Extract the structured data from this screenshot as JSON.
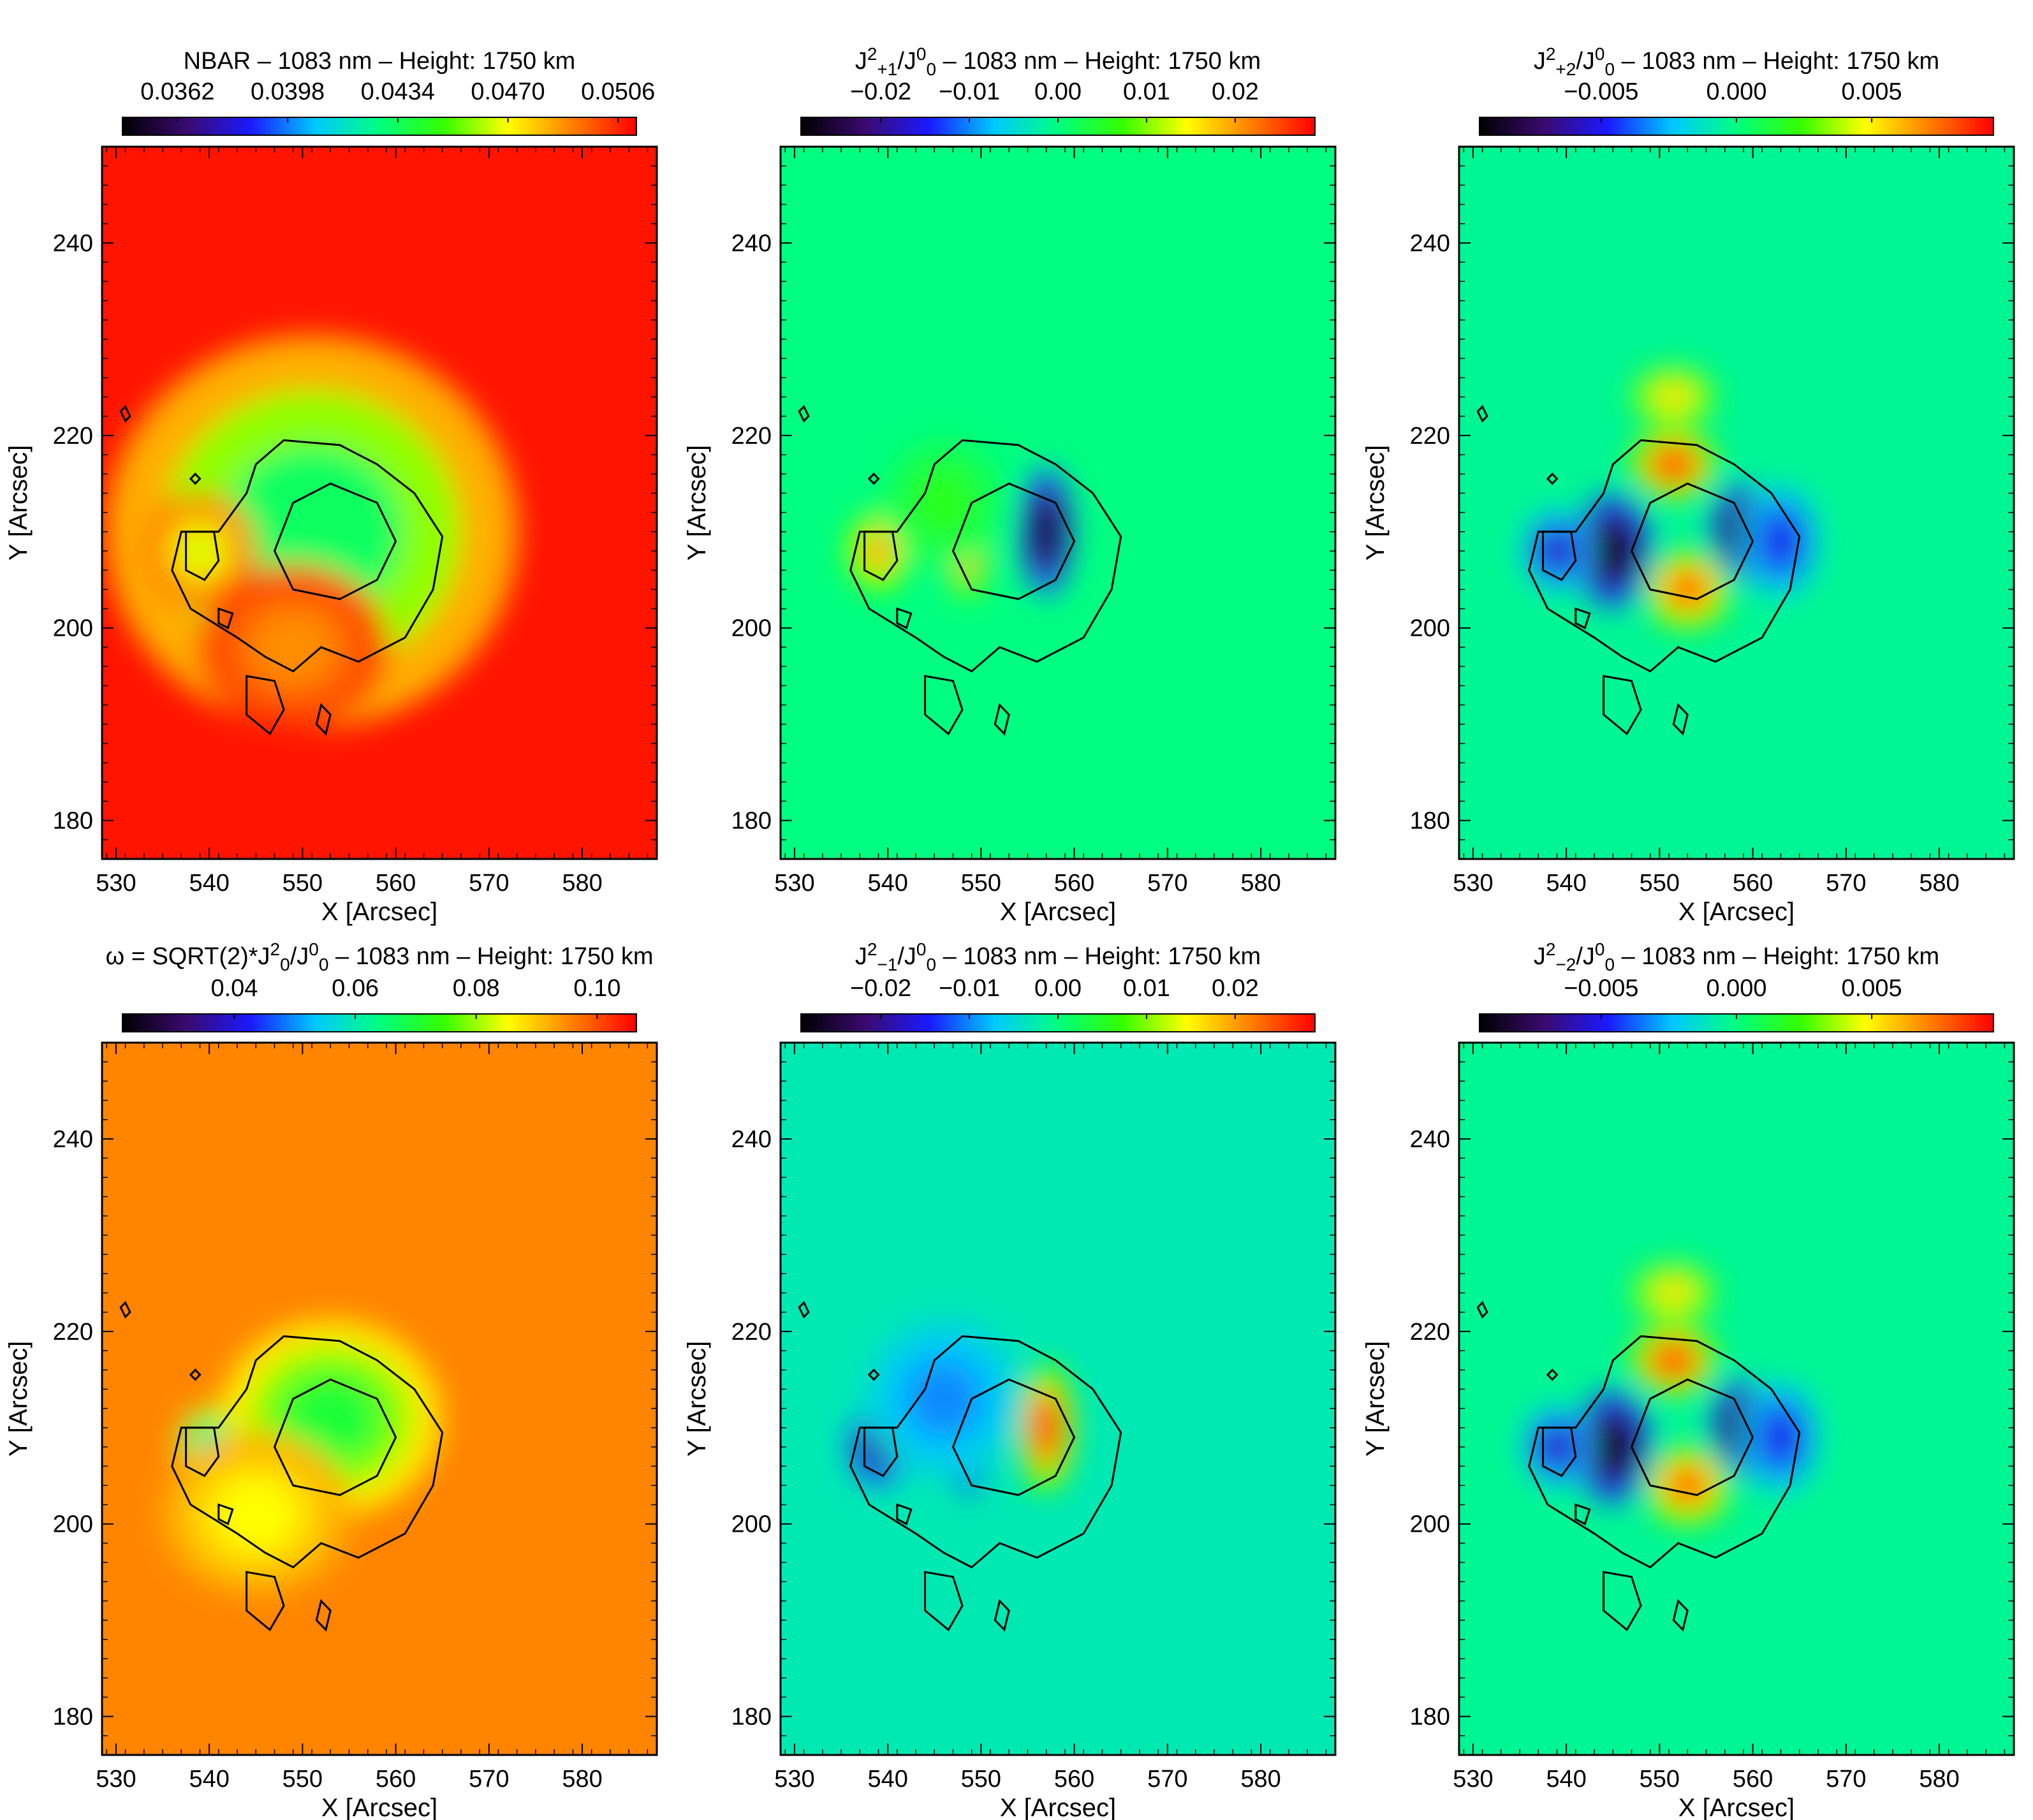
{
  "chart_data": [
    {
      "type": "heatmap",
      "title": "NBAR – 1083 nm – Height: 1750 km",
      "title_parts": [
        {
          "t": "NBAR – 1083 nm – Height: 1750 km"
        }
      ],
      "colorbar_ticks": [
        "0.0362",
        "0.0398",
        "0.0434",
        "0.0470",
        "0.0506"
      ],
      "colorbar_range": [
        0.0344,
        0.0512
      ],
      "colorbar_tick_values": [
        0.0362,
        0.0398,
        0.0434,
        0.047,
        0.0506
      ],
      "background_level": 0.98,
      "features": [
        {
          "x": 552,
          "y": 211,
          "sx": 6,
          "sy": 7,
          "amp": -1.2
        },
        {
          "x": 551,
          "y": 210,
          "sx": 13,
          "sy": 12,
          "amp": -0.45
        },
        {
          "x": 539,
          "y": 208,
          "sx": 3.5,
          "sy": 3.5,
          "amp": -0.25
        },
        {
          "x": 549,
          "y": 198,
          "sx": 6,
          "sy": 5,
          "amp": -0.12
        }
      ],
      "xlabel": "X [Arcsec]",
      "ylabel": "Y [Arcsec]",
      "xlim": [
        528.5,
        588
      ],
      "ylim": [
        176,
        250
      ],
      "xticks": [
        530,
        540,
        550,
        560,
        570,
        580
      ],
      "yticks": [
        180,
        200,
        220,
        240
      ]
    },
    {
      "type": "heatmap",
      "title": "J2+1/J00 – 1083 nm – Height: 1750 km",
      "title_parts": [
        {
          "t": "J"
        },
        {
          "t": "2",
          "s": "sup"
        },
        {
          "t": "+1",
          "s": "sub"
        },
        {
          "t": "/J"
        },
        {
          "t": "0",
          "s": "sup"
        },
        {
          "t": "0",
          "s": "sub"
        },
        {
          "t": " – 1083 nm – Height: 1750 km"
        }
      ],
      "colorbar_ticks": [
        "−0.02",
        "−0.01",
        "0.00",
        "0.01",
        "0.02"
      ],
      "colorbar_range": [
        -0.029,
        0.029
      ],
      "colorbar_tick_values": [
        -0.02,
        -0.01,
        0,
        0.01,
        0.02
      ],
      "background_level": 0.5,
      "features": [
        {
          "x": 548.5,
          "y": 210,
          "sx": 1.6,
          "sy": 4,
          "amp": 0.5
        },
        {
          "x": 557,
          "y": 210,
          "sx": 1.8,
          "sy": 4,
          "amp": -0.55
        },
        {
          "x": 539,
          "y": 208,
          "sx": 2,
          "sy": 2.5,
          "amp": 0.35
        },
        {
          "x": 546,
          "y": 213,
          "sx": 4,
          "sy": 4,
          "amp": 0.1
        }
      ],
      "xlabel": "X [Arcsec]",
      "ylabel": "Y [Arcsec]",
      "xlim": [
        528.5,
        588
      ],
      "ylim": [
        176,
        250
      ],
      "xticks": [
        530,
        540,
        550,
        560,
        570,
        580
      ],
      "yticks": [
        180,
        200,
        220,
        240
      ]
    },
    {
      "type": "heatmap",
      "title": "J2+2/J00 – 1083 nm – Height: 1750 km",
      "title_parts": [
        {
          "t": "J"
        },
        {
          "t": "2",
          "s": "sup"
        },
        {
          "t": "+2",
          "s": "sub"
        },
        {
          "t": "/J"
        },
        {
          "t": "0",
          "s": "sup"
        },
        {
          "t": "0",
          "s": "sub"
        },
        {
          "t": " – 1083 nm – Height: 1750 km"
        }
      ],
      "colorbar_ticks": [
        "−0.005",
        "0.000",
        "0.005"
      ],
      "colorbar_range": [
        -0.0095,
        0.0095
      ],
      "colorbar_tick_values": [
        -0.005,
        0,
        0.005
      ],
      "background_level": 0.48,
      "features": [
        {
          "x": 545,
          "y": 208,
          "sx": 2.5,
          "sy": 3.5,
          "amp": -0.55
        },
        {
          "x": 558.5,
          "y": 210,
          "sx": 1.8,
          "sy": 3,
          "amp": -0.5
        },
        {
          "x": 563,
          "y": 209,
          "sx": 2.5,
          "sy": 3.5,
          "amp": -0.25
        },
        {
          "x": 539,
          "y": 208,
          "sx": 2.2,
          "sy": 2.5,
          "amp": -0.3
        },
        {
          "x": 551.5,
          "y": 217,
          "sx": 2.8,
          "sy": 2.2,
          "amp": 0.5
        },
        {
          "x": 551.5,
          "y": 224,
          "sx": 2.8,
          "sy": 2,
          "amp": 0.3
        },
        {
          "x": 553,
          "y": 204,
          "sx": 2.8,
          "sy": 2.5,
          "amp": 0.45
        }
      ],
      "xlabel": "X [Arcsec]",
      "ylabel": "Y [Arcsec]",
      "xlim": [
        528.5,
        588
      ],
      "ylim": [
        176,
        250
      ],
      "xticks": [
        530,
        540,
        550,
        560,
        570,
        580
      ],
      "yticks": [
        180,
        200,
        220,
        240
      ]
    },
    {
      "type": "heatmap",
      "title": "ω = SQRT(2)*J20/J00 – 1083 nm – Height: 1750 km",
      "title_parts": [
        {
          "t": "ω = SQRT(2)*J"
        },
        {
          "t": "2",
          "s": "sup"
        },
        {
          "t": "0",
          "s": "sub"
        },
        {
          "t": "/J"
        },
        {
          "t": "0",
          "s": "sup"
        },
        {
          "t": "0",
          "s": "sub"
        },
        {
          "t": " – 1083 nm – Height: 1750 km"
        }
      ],
      "colorbar_ticks": [
        "0.04",
        "0.06",
        "0.08",
        "0.10"
      ],
      "colorbar_range": [
        0.0215,
        0.1065
      ],
      "colorbar_tick_values": [
        0.04,
        0.06,
        0.08,
        0.1
      ],
      "background_level": 0.87,
      "features": [
        {
          "x": 552,
          "y": 211,
          "sx": 3.5,
          "sy": 3.5,
          "amp": -1.1
        },
        {
          "x": 553,
          "y": 211,
          "sx": 7,
          "sy": 6,
          "amp": -0.3
        },
        {
          "x": 540,
          "y": 208,
          "sx": 2,
          "sy": 2.5,
          "amp": -0.45
        },
        {
          "x": 545,
          "y": 201,
          "sx": 6,
          "sy": 5,
          "amp": -0.12
        }
      ],
      "xlabel": "X [Arcsec]",
      "ylabel": "Y [Arcsec]",
      "xlim": [
        528.5,
        588
      ],
      "ylim": [
        176,
        250
      ],
      "xticks": [
        530,
        540,
        550,
        560,
        570,
        580
      ],
      "yticks": [
        180,
        200,
        220,
        240
      ]
    },
    {
      "type": "heatmap",
      "title": "J2−1/J00 – 1083 nm – Height: 1750 km",
      "title_parts": [
        {
          "t": "J"
        },
        {
          "t": "2",
          "s": "sup"
        },
        {
          "t": "−1",
          "s": "sub"
        },
        {
          "t": "/J"
        },
        {
          "t": "0",
          "s": "sup"
        },
        {
          "t": "0",
          "s": "sub"
        },
        {
          "t": " – 1083 nm – Height: 1750 km"
        }
      ],
      "colorbar_ticks": [
        "−0.02",
        "−0.01",
        "0.00",
        "0.01",
        "0.02"
      ],
      "colorbar_range": [
        -0.029,
        0.029
      ],
      "colorbar_tick_values": [
        -0.02,
        -0.01,
        0,
        0.01,
        0.02
      ],
      "background_level": 0.45,
      "features": [
        {
          "x": 548.5,
          "y": 210,
          "sx": 1.6,
          "sy": 4,
          "amp": -0.5
        },
        {
          "x": 557,
          "y": 210,
          "sx": 1.8,
          "sy": 4,
          "amp": 0.55
        },
        {
          "x": 539,
          "y": 208,
          "sx": 2,
          "sy": 2.5,
          "amp": -0.35
        },
        {
          "x": 546,
          "y": 213,
          "sx": 5,
          "sy": 5,
          "amp": -0.12
        }
      ],
      "xlabel": "X [Arcsec]",
      "ylabel": "Y [Arcsec]",
      "xlim": [
        528.5,
        588
      ],
      "ylim": [
        176,
        250
      ],
      "xticks": [
        530,
        540,
        550,
        560,
        570,
        580
      ],
      "yticks": [
        180,
        200,
        220,
        240
      ]
    },
    {
      "type": "heatmap",
      "title": "J2−2/J00 – 1083 nm – Height: 1750 km",
      "title_parts": [
        {
          "t": "J"
        },
        {
          "t": "2",
          "s": "sup"
        },
        {
          "t": "−2",
          "s": "sub"
        },
        {
          "t": "/J"
        },
        {
          "t": "0",
          "s": "sup"
        },
        {
          "t": "0",
          "s": "sub"
        },
        {
          "t": " – 1083 nm – Height: 1750 km"
        }
      ],
      "colorbar_ticks": [
        "−0.005",
        "0.000",
        "0.005"
      ],
      "colorbar_range": [
        -0.0095,
        0.0095
      ],
      "colorbar_tick_values": [
        -0.005,
        0,
        0.005
      ],
      "background_level": 0.48,
      "features": [
        {
          "x": 545,
          "y": 208,
          "sx": 2.5,
          "sy": 3.5,
          "amp": -0.55
        },
        {
          "x": 558.5,
          "y": 210,
          "sx": 1.8,
          "sy": 3,
          "amp": -0.5
        },
        {
          "x": 563,
          "y": 209,
          "sx": 2.5,
          "sy": 3.5,
          "amp": -0.25
        },
        {
          "x": 539,
          "y": 208,
          "sx": 2.2,
          "sy": 2.5,
          "amp": -0.3
        },
        {
          "x": 551.5,
          "y": 217,
          "sx": 2.8,
          "sy": 2.2,
          "amp": 0.5
        },
        {
          "x": 551.5,
          "y": 224,
          "sx": 2.8,
          "sy": 2,
          "amp": 0.3
        },
        {
          "x": 553,
          "y": 204,
          "sx": 2.8,
          "sy": 2.5,
          "amp": 0.45
        }
      ],
      "xlabel": "X [Arcsec]",
      "ylabel": "Y [Arcsec]",
      "xlim": [
        528.5,
        588
      ],
      "ylim": [
        176,
        250
      ],
      "xticks": [
        530,
        540,
        550,
        560,
        570,
        580
      ],
      "yticks": [
        180,
        200,
        220,
        240
      ]
    }
  ],
  "colormap": [
    "#000000",
    "#3a0a6e",
    "#1a1aff",
    "#00c8ff",
    "#00ff80",
    "#33ff00",
    "#ffff00",
    "#ff8000",
    "#ff0000"
  ],
  "contour_outer": [
    [
      548,
      219.5
    ],
    [
      554,
      219
    ],
    [
      558,
      217
    ],
    [
      562,
      214
    ],
    [
      565,
      209.5
    ],
    [
      564,
      204
    ],
    [
      561,
      199
    ],
    [
      556,
      196.5
    ],
    [
      552,
      198
    ],
    [
      549,
      195.5
    ],
    [
      546,
      197
    ],
    [
      543,
      199
    ],
    [
      538,
      202
    ],
    [
      536,
      206
    ],
    [
      537,
      210
    ],
    [
      541,
      210
    ],
    [
      544,
      214
    ],
    [
      545,
      217
    ]
  ],
  "contour_umbra": [
    [
      549,
      213
    ],
    [
      553,
      215
    ],
    [
      558,
      213
    ],
    [
      560,
      209
    ],
    [
      558,
      205
    ],
    [
      554,
      203
    ],
    [
      549,
      204
    ],
    [
      547,
      208
    ]
  ],
  "contour_pore": [
    [
      537.5,
      210
    ],
    [
      540.5,
      210
    ],
    [
      541,
      207
    ],
    [
      539.5,
      205
    ],
    [
      537.5,
      206
    ]
  ],
  "contour_blobs": [
    [
      [
        544,
        195
      ],
      [
        547,
        194.5
      ],
      [
        548,
        191.5
      ],
      [
        546.5,
        189
      ],
      [
        544,
        191
      ]
    ],
    [
      [
        552,
        192
      ],
      [
        553,
        191
      ],
      [
        552.5,
        189
      ],
      [
        551.5,
        190
      ]
    ],
    [
      [
        541,
        202
      ],
      [
        542.5,
        201.5
      ],
      [
        542,
        200
      ],
      [
        541,
        200.5
      ]
    ],
    [
      [
        531,
        223
      ],
      [
        531.5,
        222
      ],
      [
        531,
        221.5
      ],
      [
        530.5,
        222.5
      ]
    ],
    [
      [
        538.5,
        216
      ],
      [
        539,
        215.5
      ],
      [
        538.5,
        215
      ],
      [
        538,
        215.5
      ]
    ]
  ]
}
